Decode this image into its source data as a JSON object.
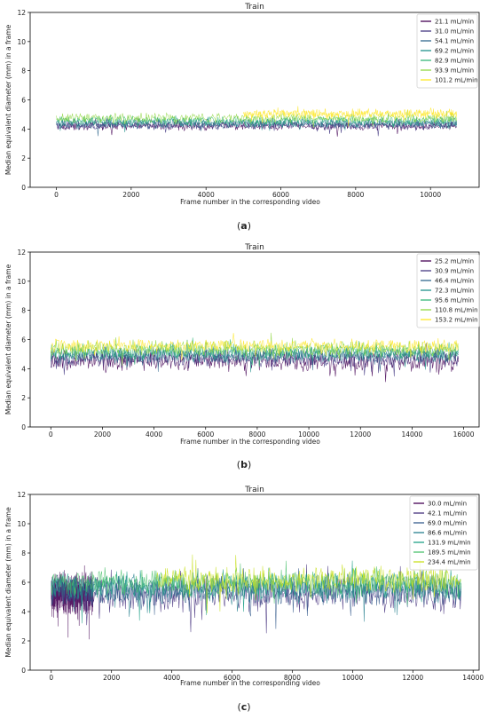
{
  "panels": [
    {
      "caption_open": "(",
      "caption_letter": "a",
      "caption_close": ")",
      "chart_data": {
        "type": "line",
        "title": "Train",
        "xlabel": "Frame number in the corresponding video",
        "ylabel": "Median equivalent diameter (mm) in a frame",
        "xlim": [
          -700,
          11300
        ],
        "ylim": [
          0,
          12
        ],
        "xticks": [
          0,
          2000,
          4000,
          6000,
          8000,
          10000
        ],
        "yticks": [
          0,
          2,
          4,
          6,
          8,
          10,
          12
        ],
        "grid": false,
        "legend_position": "top-right",
        "series": [
          {
            "name": "21.1 mL/min",
            "color": "#440154",
            "x_end": 10700,
            "mean": 4.2,
            "spread": 0.22
          },
          {
            "name": "31.0 mL/min",
            "color": "#443983",
            "x_end": 10700,
            "mean": 4.25,
            "spread": 0.22
          },
          {
            "name": "54.1 mL/min",
            "color": "#31688e",
            "x_end": 10700,
            "mean": 4.35,
            "spread": 0.25
          },
          {
            "name": "69.2 mL/min",
            "color": "#21918c",
            "x_end": 10700,
            "mean": 4.45,
            "spread": 0.25
          },
          {
            "name": "82.9 mL/min",
            "color": "#35b779",
            "x_end": 10700,
            "mean": 4.6,
            "spread": 0.25
          },
          {
            "name": "93.9 mL/min",
            "color": "#90d743",
            "x_end": 10700,
            "mean": 4.75,
            "spread": 0.25
          },
          {
            "name": "101.2 mL/min",
            "color": "#fde725",
            "x_start": 5000,
            "x_end": 10700,
            "mean": 5.05,
            "spread": 0.25
          }
        ]
      }
    },
    {
      "caption_open": "(",
      "caption_letter": "b",
      "caption_close": ")",
      "chart_data": {
        "type": "line",
        "title": "Train",
        "xlabel": "Frame number in the corresponding video",
        "ylabel": "Median equivalent diameter (mm) in a frame",
        "xlim": [
          -800,
          16600
        ],
        "ylim": [
          0,
          12
        ],
        "xticks": [
          0,
          2000,
          4000,
          6000,
          8000,
          10000,
          12000,
          14000,
          16000
        ],
        "yticks": [
          0,
          2,
          4,
          6,
          8,
          10,
          12
        ],
        "grid": false,
        "legend_position": "top-right",
        "series": [
          {
            "name": "25.2 mL/min",
            "color": "#440154",
            "x_end": 15800,
            "mean": 4.5,
            "spread": 0.5
          },
          {
            "name": "30.9 mL/min",
            "color": "#443983",
            "x_end": 15800,
            "mean": 4.7,
            "spread": 0.45
          },
          {
            "name": "46.4 mL/min",
            "color": "#31688e",
            "x_end": 15800,
            "mean": 4.9,
            "spread": 0.4
          },
          {
            "name": "72.3 mL/min",
            "color": "#21918c",
            "x_end": 15800,
            "mean": 5.0,
            "spread": 0.4
          },
          {
            "name": "95.6 mL/min",
            "color": "#35b779",
            "x_end": 15800,
            "mean": 5.2,
            "spread": 0.4
          },
          {
            "name": "110.8 mL/min",
            "color": "#90d743",
            "x_end": 15800,
            "mean": 5.4,
            "spread": 0.4
          },
          {
            "name": "153.2 mL/min",
            "color": "#fde725",
            "x_end": 15800,
            "mean": 5.6,
            "spread": 0.35
          }
        ]
      }
    },
    {
      "caption_open": "(",
      "caption_letter": "c",
      "caption_close": ")",
      "chart_data": {
        "type": "line",
        "title": "Train",
        "xlabel": "Frame number in the corresponding video",
        "ylabel": "Median equivalent diameter (mm) in a frame",
        "xlim": [
          -700,
          14200
        ],
        "ylim": [
          0,
          12
        ],
        "xticks": [
          0,
          2000,
          4000,
          6000,
          8000,
          10000,
          12000,
          14000
        ],
        "yticks": [
          0,
          2,
          4,
          6,
          8,
          10,
          12
        ],
        "grid": false,
        "legend_position": "top-right",
        "series": [
          {
            "name": "30.0 mL/min",
            "color": "#440154",
            "x_end": 1400,
            "mean": 5.2,
            "spread": 1.1
          },
          {
            "name": "42.1 mL/min",
            "color": "#46327e",
            "x_end": 13600,
            "mean": 5.2,
            "spread": 0.9
          },
          {
            "name": "69.0 mL/min",
            "color": "#365c8d",
            "x_end": 13600,
            "mean": 5.4,
            "spread": 0.8
          },
          {
            "name": "86.6 mL/min",
            "color": "#277f8e",
            "x_end": 13600,
            "mean": 5.6,
            "spread": 0.8
          },
          {
            "name": "131.9 mL/min",
            "color": "#1fa187",
            "x_end": 13600,
            "mean": 5.8,
            "spread": 0.75
          },
          {
            "name": "189.5 mL/min",
            "color": "#4ac16d",
            "x_end": 13600,
            "mean": 6.0,
            "spread": 0.7
          },
          {
            "name": "234.4 mL/min",
            "color": "#c8e020",
            "x_start": 3500,
            "x_end": 13600,
            "mean": 6.2,
            "spread": 0.65
          }
        ]
      }
    }
  ]
}
